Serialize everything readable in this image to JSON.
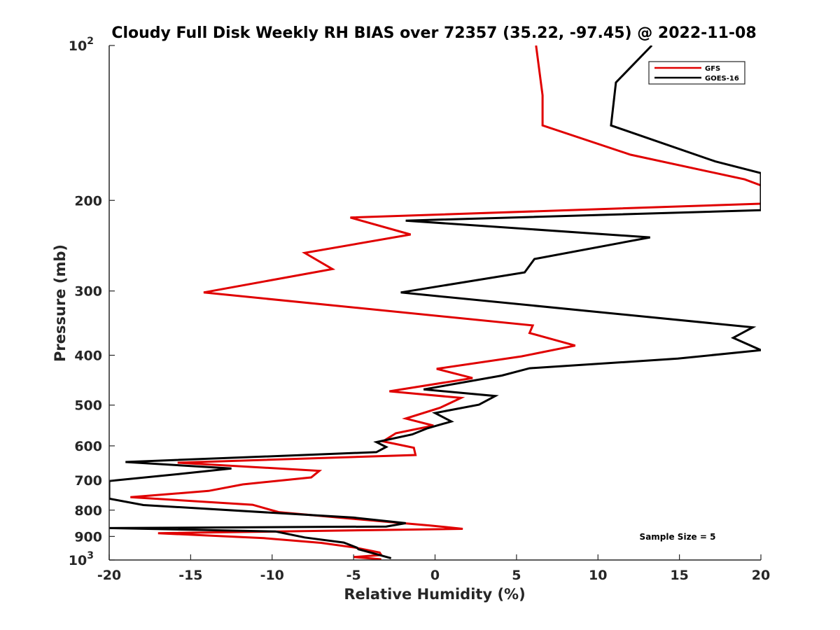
{
  "chart_data": {
    "type": "line",
    "title": "Cloudy Full Disk Weekly RH BIAS over 72357 (35.22, -97.45) @ 2022-11-08",
    "xlabel": "Relative Humidity (%)",
    "ylabel": "Pressure (mb)",
    "xlim": [
      -20,
      20
    ],
    "ylim": [
      100,
      1000
    ],
    "y_scale": "log",
    "y_reversed": true,
    "grid": false,
    "legend_position": "top-right",
    "x_ticks": [
      {
        "value": -20,
        "label": "-20"
      },
      {
        "value": -15,
        "label": "-15"
      },
      {
        "value": -10,
        "label": "-10"
      },
      {
        "value": -5,
        "label": "-5"
      },
      {
        "value": 0,
        "label": "0"
      },
      {
        "value": 5,
        "label": "5"
      },
      {
        "value": 10,
        "label": "10"
      },
      {
        "value": 15,
        "label": "15"
      },
      {
        "value": 20,
        "label": "20"
      }
    ],
    "y_ticks": [
      {
        "value": 100,
        "base": "10",
        "exp": "2"
      },
      {
        "value": 200,
        "base": "200",
        "exp": ""
      },
      {
        "value": 300,
        "base": "300",
        "exp": ""
      },
      {
        "value": 400,
        "base": "400",
        "exp": ""
      },
      {
        "value": 500,
        "base": "500",
        "exp": ""
      },
      {
        "value": 600,
        "base": "600",
        "exp": ""
      },
      {
        "value": 700,
        "base": "700",
        "exp": ""
      },
      {
        "value": 800,
        "base": "800",
        "exp": ""
      },
      {
        "value": 900,
        "base": "900",
        "exp": ""
      },
      {
        "value": 1000,
        "base": "10",
        "exp": "3"
      }
    ],
    "annotation": "Sample Size = 5",
    "series": [
      {
        "name": "GFS",
        "color": "#e00000",
        "points": [
          [
            6.2,
            100
          ],
          [
            6.6,
            125
          ],
          [
            6.6,
            143
          ],
          [
            12.0,
            163
          ],
          [
            19.0,
            182
          ],
          [
            20.0,
            187
          ],
          [
            20.0,
            203
          ],
          [
            -5.2,
            216
          ],
          [
            -1.5,
            233
          ],
          [
            -8.0,
            253
          ],
          [
            -6.3,
            272
          ],
          [
            -14.2,
            302
          ],
          [
            6.0,
            350
          ],
          [
            5.8,
            362
          ],
          [
            8.6,
            383
          ],
          [
            5.3,
            402
          ],
          [
            0.1,
            425
          ],
          [
            2.3,
            443
          ],
          [
            -2.8,
            470
          ],
          [
            1.6,
            484
          ],
          [
            0.3,
            506
          ],
          [
            -1.8,
            531
          ],
          [
            -0.1,
            548
          ],
          [
            -2.4,
            567
          ],
          [
            -3.2,
            588
          ],
          [
            -1.3,
            605
          ],
          [
            -1.2,
            625
          ],
          [
            -15.8,
            647
          ],
          [
            -7.1,
            671
          ],
          [
            -7.6,
            691
          ],
          [
            -11.8,
            713
          ],
          [
            -13.9,
            734
          ],
          [
            -18.7,
            755
          ],
          [
            -11.2,
            781
          ],
          [
            -9.6,
            807
          ],
          [
            -5.0,
            832
          ],
          [
            -0.3,
            857
          ],
          [
            1.7,
            870
          ],
          [
            -17.0,
            887
          ],
          [
            -10.5,
            907
          ],
          [
            -7.0,
            926
          ],
          [
            -4.9,
            946
          ],
          [
            -3.4,
            967
          ],
          [
            -3.3,
            978
          ],
          [
            -5.0,
            987
          ],
          [
            -3.3,
            997
          ]
        ]
      },
      {
        "name": "GOES-16",
        "color": "#000000",
        "points": [
          [
            13.3,
            100
          ],
          [
            11.1,
            118
          ],
          [
            10.8,
            143
          ],
          [
            17.2,
            168
          ],
          [
            20.0,
            177
          ],
          [
            20.0,
            209
          ],
          [
            -1.8,
            219
          ],
          [
            13.2,
            236
          ],
          [
            6.1,
            260
          ],
          [
            5.5,
            276
          ],
          [
            -2.1,
            302
          ],
          [
            19.5,
            353
          ],
          [
            18.3,
            370
          ],
          [
            20.0,
            391
          ],
          [
            14.9,
            406
          ],
          [
            5.8,
            424
          ],
          [
            4.1,
            438
          ],
          [
            -0.7,
            466
          ],
          [
            3.7,
            480
          ],
          [
            2.7,
            499
          ],
          [
            0.0,
            518
          ],
          [
            1.0,
            538
          ],
          [
            -0.5,
            555
          ],
          [
            -1.4,
            570
          ],
          [
            -3.6,
            590
          ],
          [
            -3.0,
            603
          ],
          [
            -3.6,
            617
          ],
          [
            -19.0,
            645
          ],
          [
            -12.5,
            664
          ],
          [
            -15.6,
            680
          ],
          [
            -20.0,
            702
          ],
          [
            -20.0,
            760
          ],
          [
            -17.9,
            782
          ],
          [
            -5.0,
            827
          ],
          [
            -1.8,
            848
          ],
          [
            -3.0,
            861
          ],
          [
            -20.0,
            867
          ],
          [
            -9.8,
            880
          ],
          [
            -8.0,
            904
          ],
          [
            -5.6,
            925
          ],
          [
            -4.8,
            946
          ],
          [
            -4.7,
            953
          ],
          [
            -2.7,
            992
          ]
        ]
      }
    ]
  }
}
